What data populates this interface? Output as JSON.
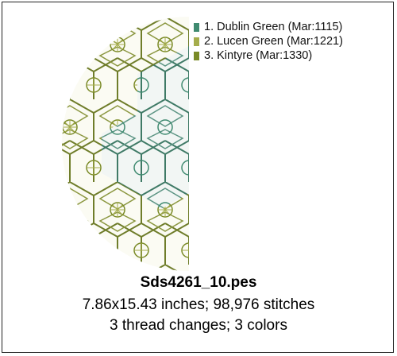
{
  "threads": [
    {
      "label": "1. Dublin Green (Mar:1115)",
      "color": "#3f8a70"
    },
    {
      "label": "2. Lucen Green (Mar:1221)",
      "color": "#a5ad4c"
    },
    {
      "label": "3. Kintyre (Mar:1330)",
      "color": "#7a8a26"
    }
  ],
  "file": {
    "name": "Sds4261_10.pes",
    "size_line": "7.86x15.43 inches; 98,976 stitches",
    "changes_line": "3 thread changes; 3 colors"
  }
}
